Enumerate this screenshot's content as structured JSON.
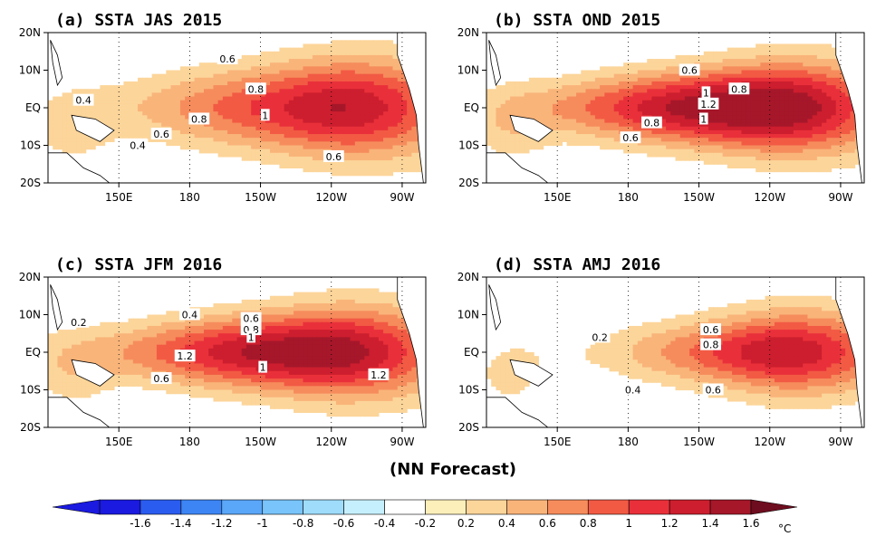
{
  "caption": "(NN Forecast)",
  "chart_data": {
    "type": "heatmap",
    "variable": "SSTA",
    "x_ticks": [
      "150E",
      "180",
      "150W",
      "120W",
      "90W"
    ],
    "y_ticks": [
      "20N",
      "10N",
      "EQ",
      "10S",
      "20S"
    ],
    "ylim": [
      -20,
      20
    ],
    "unit_label": "°C",
    "colorbar": {
      "ticks": [
        "-1.6",
        "-1.4",
        "-1.2",
        "-1",
        "-0.8",
        "-0.6",
        "-0.4",
        "-0.2",
        "0.2",
        "0.4",
        "0.6",
        "0.8",
        "1",
        "1.2",
        "1.4",
        "1.6"
      ],
      "levels": [
        -1.6,
        -1.4,
        -1.2,
        -1,
        -0.8,
        -0.6,
        -0.4,
        -0.2,
        0.2,
        0.4,
        0.6,
        0.8,
        1,
        1.2,
        1.4,
        1.6
      ],
      "colors": [
        "#1a1ae0",
        "#2b5cf0",
        "#3d85f5",
        "#5aa6f8",
        "#79c4fa",
        "#9fdcfb",
        "#c6effd",
        "#ffffff",
        "#fdefba",
        "#fcd59a",
        "#f9b47a",
        "#f68c5c",
        "#f25a44",
        "#e9303a",
        "#cc1e2e",
        "#a6172a"
      ]
    },
    "panels": [
      {
        "title": "(a) SSTA  JAS 2015",
        "lon_center": -128,
        "lon_width": 72,
        "lat_width": 9,
        "max_value": 1.1,
        "contour_labels": [
          {
            "text": "0.4",
            "lon": 135,
            "lat": 2
          },
          {
            "text": "0.6",
            "lon": 196,
            "lat": 13
          },
          {
            "text": "0.8",
            "lon": 208,
            "lat": 5
          },
          {
            "text": "0.8",
            "lon": 184,
            "lat": -3
          },
          {
            "text": "1",
            "lon": 212,
            "lat": -2
          },
          {
            "text": "0.6",
            "lon": 168,
            "lat": -7
          },
          {
            "text": "0.4",
            "lon": 158,
            "lat": -10
          },
          {
            "text": "0.6",
            "lon": 241,
            "lat": -13
          }
        ]
      },
      {
        "title": "(b) SSTA  OND 2015",
        "lon_center": -140,
        "lon_width": 70,
        "lat_width": 8,
        "max_value": 1.55,
        "contour_labels": [
          {
            "text": "0.6",
            "lon": 206,
            "lat": 10
          },
          {
            "text": "1",
            "lon": 213,
            "lat": 4
          },
          {
            "text": "0.8",
            "lon": 227,
            "lat": 5
          },
          {
            "text": "1.2",
            "lon": 214,
            "lat": 1
          },
          {
            "text": "0.8",
            "lon": 190,
            "lat": -4
          },
          {
            "text": "1",
            "lon": 212,
            "lat": -3
          },
          {
            "text": "0.6",
            "lon": 181,
            "lat": -8
          }
        ]
      },
      {
        "title": "(c) SSTA  JFM 2016",
        "lon_center": -142,
        "lon_width": 68,
        "lat_width": 8,
        "max_value": 1.45,
        "contour_labels": [
          {
            "text": "0.2",
            "lon": 133,
            "lat": 8
          },
          {
            "text": "0.4",
            "lon": 180,
            "lat": 10
          },
          {
            "text": "0.6",
            "lon": 206,
            "lat": 9
          },
          {
            "text": "0.8",
            "lon": 206,
            "lat": 6
          },
          {
            "text": "1",
            "lon": 206,
            "lat": 4
          },
          {
            "text": "1.2",
            "lon": 178,
            "lat": -1
          },
          {
            "text": "1",
            "lon": 211,
            "lat": -4
          },
          {
            "text": "0.6",
            "lon": 168,
            "lat": -7
          },
          {
            "text": "1.2",
            "lon": 260,
            "lat": -6
          }
        ]
      },
      {
        "title": "(d) SSTA  AMJ 2016",
        "lon_center": -120,
        "lon_width": 60,
        "lat_width": 7,
        "max_value": 1.05,
        "contour_labels": [
          {
            "text": "0.2",
            "lon": 168,
            "lat": 4
          },
          {
            "text": "0.6",
            "lon": 215,
            "lat": 6
          },
          {
            "text": "0.8",
            "lon": 215,
            "lat": 2
          },
          {
            "text": "0.4",
            "lon": 182,
            "lat": -10
          },
          {
            "text": "0.6",
            "lon": 216,
            "lat": -10
          }
        ]
      }
    ]
  }
}
